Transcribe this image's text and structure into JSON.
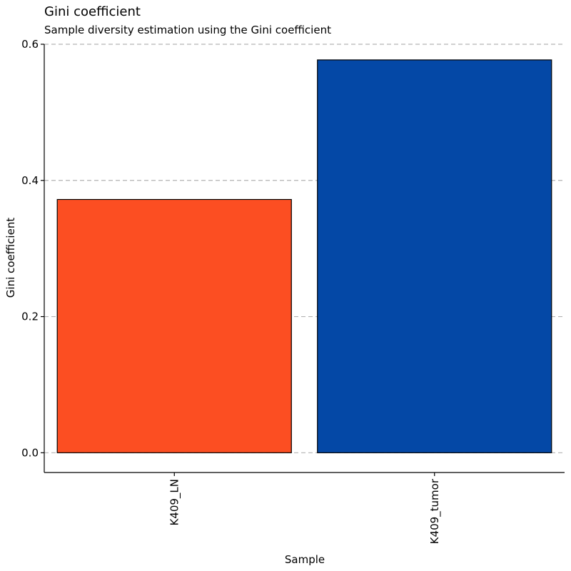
{
  "chart_data": {
    "type": "bar",
    "title": "Gini coefficient",
    "subtitle": "Sample diversity estimation using the Gini coefficient",
    "xlabel": "Sample",
    "ylabel": "Gini coefficient",
    "categories": [
      "K409_LN",
      "K409_tumor"
    ],
    "values": [
      0.372,
      0.577
    ],
    "colors": [
      "#fc4e22",
      "#0448a6"
    ],
    "y_ticks": [
      0.0,
      0.2,
      0.4,
      0.6
    ],
    "y_tick_labels": [
      "0.0",
      "0.2",
      "0.4",
      "0.6"
    ],
    "ylim": [
      -0.029,
      0.6
    ],
    "grid": "horizontal dashed",
    "legend": "none"
  }
}
